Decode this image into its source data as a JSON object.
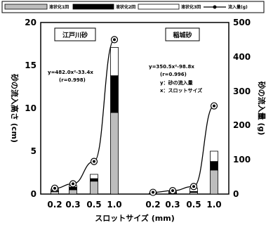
{
  "chart_data": {
    "type": "bar",
    "xlabel": "スロットサイズ (mm)",
    "ylabel_left": "砂の流入高さ (cm)",
    "ylabel_right": "砂の流入量 (g)",
    "ylim_left": [
      0,
      20
    ],
    "ylim_right": [
      0,
      500
    ],
    "yticks_left": [
      "0",
      "5",
      "10",
      "15",
      "20"
    ],
    "yticks_right": [
      "0",
      "100",
      "200",
      "300",
      "400",
      "500"
    ],
    "categories": [
      "0.2",
      "0.3",
      "0.5",
      "1.0",
      "0.2",
      "0.3",
      "0.5",
      "1.0"
    ],
    "legend": {
      "position": "top",
      "entries": [
        "液状化1回",
        "液状化2回",
        "液状化3回",
        "流入量(g)"
      ]
    },
    "series_colors": {
      "liq1": "#bdbdbd",
      "liq2": "#000000",
      "liq3": "#ffffff",
      "inflow": "#000000"
    },
    "groups": [
      {
        "name": "江戸川砂",
        "equation": "y=482.0x²-33.4x",
        "r": "(r=0.998)",
        "note1": "",
        "note2": "",
        "stacks": [
          {
            "x": "0.2",
            "liq1": 0.3,
            "liq2": 0.1,
            "liq3": 0.2
          },
          {
            "x": "0.3",
            "liq1": 0.5,
            "liq2": 0.3,
            "liq3": 0.2
          },
          {
            "x": "0.5",
            "liq1": 1.5,
            "liq2": 0.3,
            "liq3": 0.5
          },
          {
            "x": "1.0",
            "liq1": 9.5,
            "liq2": 4.3,
            "liq3": 3.3
          }
        ],
        "inflow_g": [
          17,
          30,
          95,
          450
        ]
      },
      {
        "name": "稲城砂",
        "equation": "y=350.5x²-98.8x",
        "r": "(r=0.996)",
        "note1": "y：砂の流入量",
        "note2": "x：スロットサイズ",
        "stacks": [
          {
            "x": "0.2",
            "liq1": 0.05,
            "liq2": 0.02,
            "liq3": 0.03
          },
          {
            "x": "0.3",
            "liq1": 0.1,
            "liq2": 0.05,
            "liq3": 0.15
          },
          {
            "x": "0.5",
            "liq1": 0.2,
            "liq2": 0.1,
            "liq3": 0.4
          },
          {
            "x": "1.0",
            "liq1": 2.8,
            "liq2": 1.0,
            "liq3": 1.2
          }
        ],
        "inflow_g": [
          5,
          10,
          22,
          257
        ]
      }
    ]
  }
}
